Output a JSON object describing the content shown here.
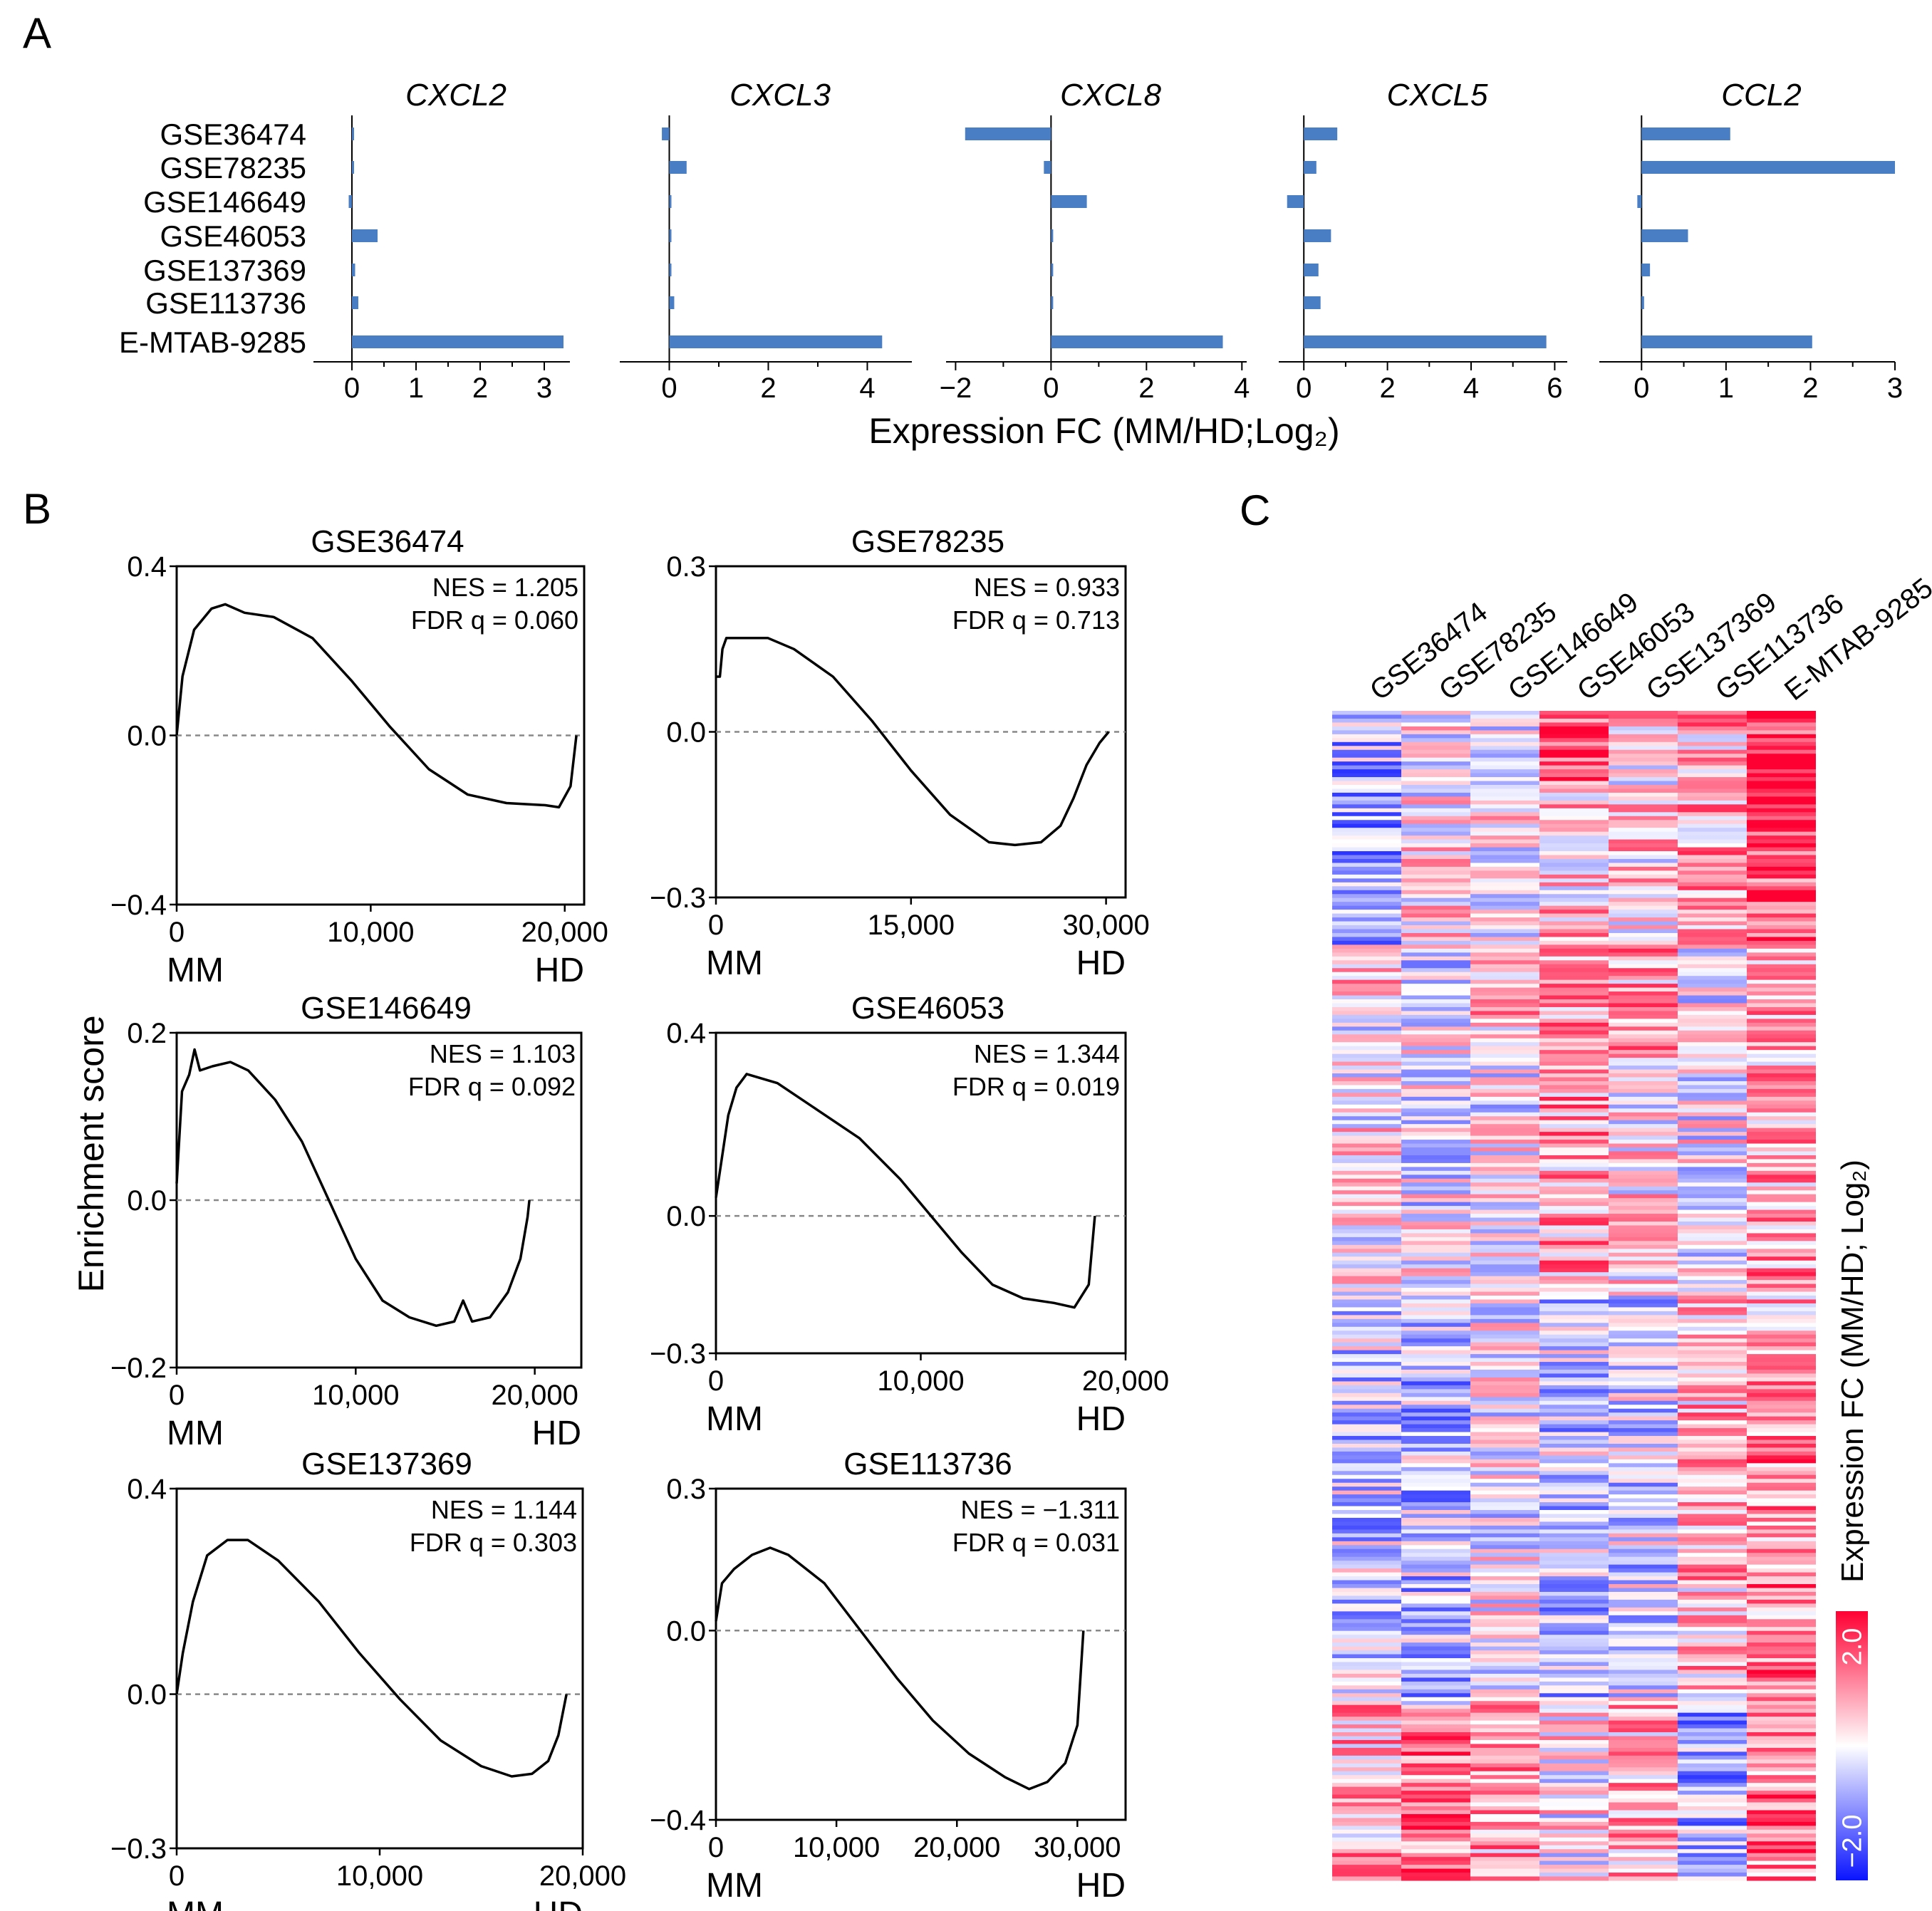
{
  "panel_labels": [
    "A",
    "B",
    "C"
  ],
  "chart_data": [
    {
      "type": "bar",
      "orientation": "horizontal",
      "panel": "A",
      "xlabel": "Expression FC (MM/HD;Log₂)",
      "categories": [
        "GSE36474",
        "GSE78235",
        "GSE146649",
        "GSE46053",
        "GSE137369",
        "GSE113736",
        "E-MTAB-9285"
      ],
      "series": [
        {
          "name": "CXCL2",
          "values": [
            0.0,
            0.0,
            -0.05,
            0.4,
            0.05,
            0.1,
            3.3
          ],
          "xlim": [
            -0.6,
            3.4
          ],
          "ticks": [
            0,
            1,
            2,
            3
          ]
        },
        {
          "name": "CXCL3",
          "values": [
            -0.15,
            0.35,
            0.0,
            0.0,
            0.0,
            0.1,
            4.3
          ],
          "xlim": [
            -1.0,
            4.9
          ],
          "ticks": [
            0,
            2,
            4
          ]
        },
        {
          "name": "CXCL8",
          "values": [
            -1.8,
            -0.15,
            0.75,
            0.0,
            0.0,
            0.0,
            3.6
          ],
          "xlim": [
            -2.2,
            4.1
          ],
          "ticks": [
            -2,
            0,
            2,
            4
          ]
        },
        {
          "name": "CXCL5",
          "values": [
            0.8,
            0.3,
            -0.4,
            0.65,
            0.35,
            0.4,
            5.8
          ],
          "xlim": [
            -0.6,
            6.3
          ],
          "ticks": [
            0,
            2,
            4,
            6
          ]
        },
        {
          "name": "CCL2",
          "values": [
            1.05,
            3.0,
            -0.05,
            0.55,
            0.1,
            0.03,
            2.02
          ],
          "xlim": [
            -0.5,
            3.0
          ],
          "ticks": [
            0,
            1,
            2,
            3
          ]
        }
      ],
      "colors": {
        "bar": "#4a7ec4"
      }
    },
    {
      "type": "line",
      "panel": "B",
      "ylabel": "Enrichment score",
      "xlabel_left": "MM",
      "xlabel_right": "HD",
      "colors": {
        "line": "#000000",
        "zero_line": "#888888"
      },
      "plots": [
        {
          "name": "GSE36474",
          "nes": "NES = 1.205",
          "fdr": "FDR q = 0.060",
          "ylim": [
            -0.4,
            0.4
          ],
          "yticks": [
            "0.4",
            "0.0",
            "−0.4"
          ],
          "xlim": [
            0,
            21000
          ],
          "xticks": [
            0,
            10000,
            20000
          ],
          "xticklabels": [
            "0",
            "10,000",
            "20,000"
          ],
          "points": [
            [
              0,
              0
            ],
            [
              300,
              0.14
            ],
            [
              900,
              0.25
            ],
            [
              1800,
              0.3
            ],
            [
              2500,
              0.31
            ],
            [
              3500,
              0.29
            ],
            [
              5000,
              0.28
            ],
            [
              7000,
              0.23
            ],
            [
              9000,
              0.13
            ],
            [
              11000,
              0.02
            ],
            [
              13000,
              -0.08
            ],
            [
              15000,
              -0.14
            ],
            [
              17000,
              -0.16
            ],
            [
              19000,
              -0.165
            ],
            [
              19700,
              -0.17
            ],
            [
              20300,
              -0.12
            ],
            [
              20600,
              0.0
            ]
          ]
        },
        {
          "name": "GSE78235",
          "nes": "NES = 0.933",
          "fdr": "FDR q = 0.713",
          "ylim": [
            -0.3,
            0.3
          ],
          "yticks": [
            "0.3",
            "0.0",
            "−0.3"
          ],
          "xlim": [
            0,
            31500
          ],
          "xticks": [
            0,
            15000,
            30000
          ],
          "xticklabels": [
            "0",
            "15,000",
            "30,000"
          ],
          "points": [
            [
              0,
              0.1
            ],
            [
              300,
              0.1
            ],
            [
              500,
              0.15
            ],
            [
              800,
              0.17
            ],
            [
              1500,
              0.17
            ],
            [
              4000,
              0.17
            ],
            [
              6000,
              0.15
            ],
            [
              9000,
              0.1
            ],
            [
              12000,
              0.02
            ],
            [
              15000,
              -0.07
            ],
            [
              18000,
              -0.15
            ],
            [
              21000,
              -0.2
            ],
            [
              23000,
              -0.205
            ],
            [
              25000,
              -0.2
            ],
            [
              26500,
              -0.17
            ],
            [
              27500,
              -0.12
            ],
            [
              28500,
              -0.06
            ],
            [
              29500,
              -0.02
            ],
            [
              30200,
              0.0
            ]
          ]
        },
        {
          "name": "GSE146649",
          "nes": "NES = 1.103",
          "fdr": "FDR q = 0.092",
          "ylim": [
            -0.2,
            0.2
          ],
          "yticks": [
            "0.2",
            "0.0",
            "−0.2"
          ],
          "xlim": [
            0,
            22600
          ],
          "xticks": [
            0,
            10000,
            20000
          ],
          "xticklabels": [
            "0",
            "10,000",
            "20,000"
          ],
          "points": [
            [
              0,
              0.02
            ],
            [
              300,
              0.13
            ],
            [
              700,
              0.15
            ],
            [
              1000,
              0.18
            ],
            [
              1300,
              0.155
            ],
            [
              2000,
              0.16
            ],
            [
              3000,
              0.165
            ],
            [
              4000,
              0.155
            ],
            [
              5500,
              0.12
            ],
            [
              7000,
              0.07
            ],
            [
              8500,
              0.0
            ],
            [
              10000,
              -0.07
            ],
            [
              11500,
              -0.12
            ],
            [
              13000,
              -0.14
            ],
            [
              14500,
              -0.15
            ],
            [
              15500,
              -0.145
            ],
            [
              16000,
              -0.12
            ],
            [
              16500,
              -0.145
            ],
            [
              17500,
              -0.14
            ],
            [
              18500,
              -0.11
            ],
            [
              19200,
              -0.07
            ],
            [
              19600,
              -0.02
            ],
            [
              19700,
              0.0
            ]
          ]
        },
        {
          "name": "GSE46053",
          "nes": "NES = 1.344",
          "fdr": "FDR q = 0.019",
          "ylim": [
            -0.3,
            0.4
          ],
          "yticks": [
            "0.4",
            "0.0",
            "−0.3"
          ],
          "xlim": [
            0,
            20000
          ],
          "xticks": [
            0,
            10000,
            20000
          ],
          "xticklabels": [
            "0",
            "10,000",
            "20,000"
          ],
          "points": [
            [
              0,
              0.04
            ],
            [
              200,
              0.1
            ],
            [
              600,
              0.22
            ],
            [
              1000,
              0.28
            ],
            [
              1500,
              0.31
            ],
            [
              3000,
              0.29
            ],
            [
              5000,
              0.23
            ],
            [
              7000,
              0.17
            ],
            [
              9000,
              0.08
            ],
            [
              10500,
              0.0
            ],
            [
              12000,
              -0.08
            ],
            [
              13500,
              -0.15
            ],
            [
              15000,
              -0.18
            ],
            [
              16500,
              -0.19
            ],
            [
              17500,
              -0.2
            ],
            [
              18200,
              -0.15
            ],
            [
              18500,
              0.0
            ]
          ]
        },
        {
          "name": "GSE137369",
          "nes": "NES = 1.144",
          "fdr": "FDR q = 0.303",
          "ylim": [
            -0.3,
            0.4
          ],
          "yticks": [
            "0.4",
            "0.0",
            "−0.3"
          ],
          "xlim": [
            0,
            20000
          ],
          "xticks": [
            0,
            10000,
            20000
          ],
          "xticklabels": [
            "0",
            "10,000",
            "20,000"
          ],
          "points": [
            [
              0,
              0.0
            ],
            [
              300,
              0.08
            ],
            [
              800,
              0.18
            ],
            [
              1500,
              0.27
            ],
            [
              2500,
              0.3
            ],
            [
              3500,
              0.3
            ],
            [
              5000,
              0.26
            ],
            [
              7000,
              0.18
            ],
            [
              9000,
              0.08
            ],
            [
              11000,
              -0.01
            ],
            [
              13000,
              -0.09
            ],
            [
              15000,
              -0.14
            ],
            [
              16500,
              -0.16
            ],
            [
              17500,
              -0.155
            ],
            [
              18300,
              -0.13
            ],
            [
              18800,
              -0.08
            ],
            [
              19200,
              0.0
            ]
          ]
        },
        {
          "name": "GSE113736",
          "nes": "NES = −1.311",
          "fdr": "FDR q = 0.031",
          "ylim": [
            -0.4,
            0.3
          ],
          "yticks": [
            "0.3",
            "0.0",
            "−0.4"
          ],
          "xlim": [
            0,
            34000
          ],
          "xticks": [
            0,
            10000,
            20000,
            30000
          ],
          "xticklabels": [
            "0",
            "10,000",
            "20,000",
            "30,000"
          ],
          "points": [
            [
              0,
              0.02
            ],
            [
              500,
              0.1
            ],
            [
              1500,
              0.13
            ],
            [
              3000,
              0.16
            ],
            [
              4500,
              0.175
            ],
            [
              6000,
              0.16
            ],
            [
              9000,
              0.1
            ],
            [
              12000,
              0.0
            ],
            [
              15000,
              -0.1
            ],
            [
              18000,
              -0.19
            ],
            [
              21000,
              -0.26
            ],
            [
              24000,
              -0.31
            ],
            [
              26000,
              -0.335
            ],
            [
              27500,
              -0.32
            ],
            [
              29000,
              -0.28
            ],
            [
              30000,
              -0.2
            ],
            [
              30500,
              0.0
            ]
          ]
        }
      ]
    },
    {
      "type": "heatmap",
      "panel": "C",
      "columns": [
        "GSE36474",
        "GSE78235",
        "GSE146649",
        "GSE46053",
        "GSE137369",
        "GSE113736",
        "E-MTAB-9285"
      ],
      "colorbar_label": "Expression FC (MM/HD; Log₂)",
      "colorbar_ticks": [
        "2.0",
        "−2.0"
      ],
      "range": [
        -2.0,
        2.0
      ],
      "colors": {
        "high": "#ff0033",
        "mid": "#ffffff",
        "low": "#0a14ff"
      },
      "rows": 300,
      "seed": 7
    }
  ]
}
